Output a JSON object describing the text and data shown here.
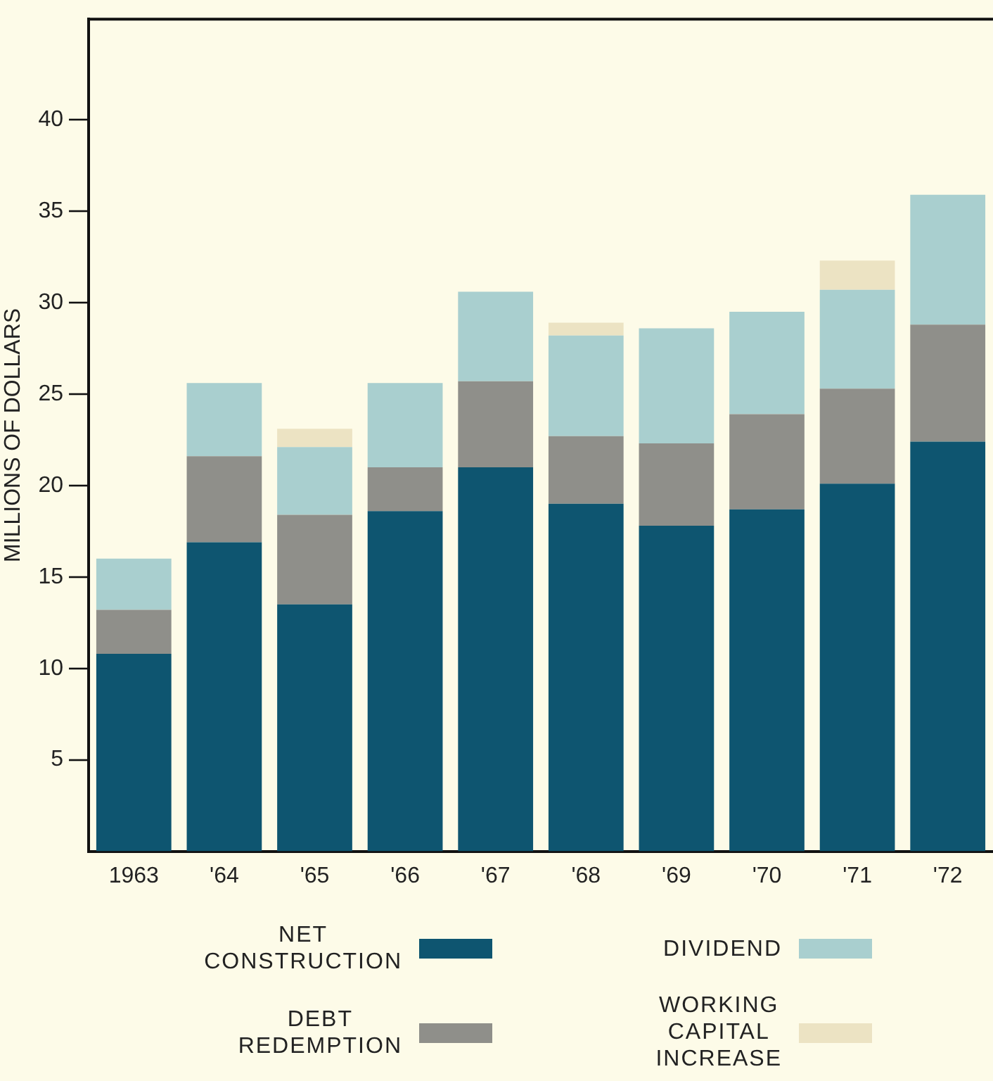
{
  "chart_data": {
    "type": "bar",
    "stacked": true,
    "ylabel": "MILLIONS OF DOLLARS",
    "categories": [
      "1963",
      "'64",
      "'65",
      "'66",
      "'67",
      "'68",
      "'69",
      "'70",
      "'71",
      "'72"
    ],
    "series": [
      {
        "name": "NET CONSTRUCTION",
        "color": "#0e5570",
        "values": [
          10.8,
          16.9,
          13.5,
          18.6,
          21.0,
          19.0,
          17.8,
          18.7,
          20.1,
          22.4
        ]
      },
      {
        "name": "DEBT REDEMPTION",
        "color": "#8f8f8a",
        "values": [
          2.4,
          4.7,
          4.9,
          2.4,
          4.7,
          3.7,
          4.5,
          5.2,
          5.2,
          6.4
        ]
      },
      {
        "name": "DIVIDEND",
        "color": "#a9cfcf",
        "values": [
          2.8,
          4.0,
          3.7,
          4.6,
          4.9,
          5.5,
          6.3,
          5.6,
          5.4,
          7.1
        ]
      },
      {
        "name": "WORKING CAPITAL INCREASE",
        "color": "#ece3c3",
        "values": [
          null,
          null,
          1.0,
          null,
          null,
          0.7,
          null,
          null,
          1.6,
          null
        ]
      }
    ],
    "ylim": [
      0,
      45.5
    ],
    "yticks": [
      5,
      10,
      15,
      20,
      25,
      30,
      35,
      40
    ],
    "grid": false,
    "legend": "bottom"
  }
}
